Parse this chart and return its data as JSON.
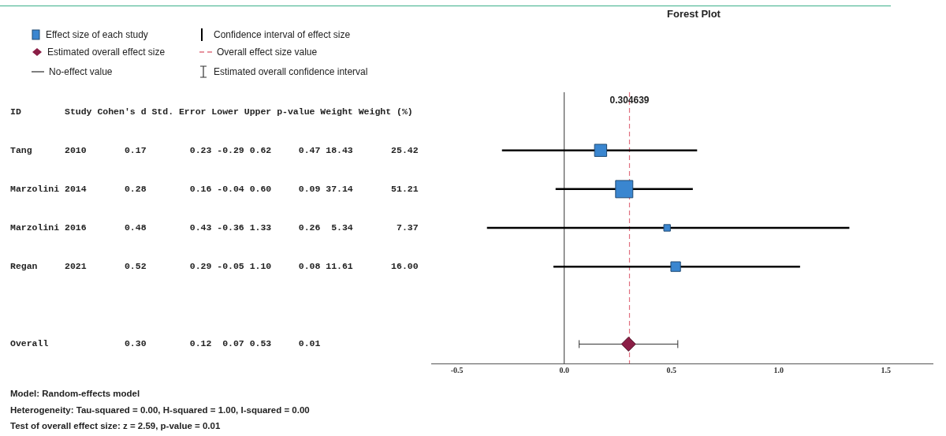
{
  "chart_data": {
    "type": "scatter",
    "title": "Forest Plot",
    "orientation": "horizontal",
    "categories": [
      null,
      null,
      null,
      null,
      null,
      null,
      null
    ],
    "series": [
      {
        "name": "Effect size of each study",
        "type": "bubble",
        "marker": "square",
        "color": "#3a86d0",
        "values": [
          null,
          0.17,
          0.28,
          0.48,
          0.52,
          null,
          null
        ],
        "sizes": [
          null,
          0.496,
          1,
          0.144,
          0.312,
          null,
          null
        ],
        "errors": [
          null,
          [
            -0.29,
            0.62
          ],
          [
            -0.04,
            0.6
          ],
          [
            -0.36,
            1.33
          ],
          [
            -0.05,
            1.1
          ],
          null,
          null
        ]
      },
      {
        "name": "Estimated overall effect size",
        "type": "scatter",
        "marker": "diamond",
        "color": "#8b1e46",
        "values": [
          null,
          null,
          null,
          null,
          null,
          null,
          0.3
        ],
        "errors": [
          null,
          null,
          null,
          null,
          null,
          null,
          [
            0.07,
            0.53
          ]
        ]
      }
    ],
    "xlim": [
      -0.62,
      1.72
    ],
    "xticks": [
      -0.5,
      {
        "value": 0,
        "label": "0.0"
      },
      0.5,
      {
        "value": 1,
        "label": "1.0"
      },
      1.5
    ],
    "tick_labels": "x",
    "grid": false,
    "legend": "top left",
    "ref_lines": [
      {
        "axis": "x",
        "value": 0,
        "label": "No-effect value",
        "color": "#555555",
        "line_style": "solid"
      },
      {
        "axis": "x",
        "value": 0.304639,
        "label": "Overall effect size value",
        "color": "#e0707f",
        "line_style": "dashed"
      }
    ],
    "annotations": [
      {
        "text": "0.304639",
        "x": 0.304639
      },
      "Confidence interval of effect size",
      "Estimated overall confidence interval",
      "ID        Study Cohen's d Std. Error Lower Upper p-value Weight Weight (%)",
      "Tang      2010       0.17        0.23 -0.29 0.62     0.47 18.43       25.42",
      "Marzolini 2014       0.28        0.16 -0.04 0.60     0.09 37.14       51.21",
      "Marzolini 2016       0.48        0.43 -0.36 1.33     0.26  5.34        7.37",
      "Regan     2021       0.52        0.29 -0.05 1.10     0.08 11.61       16.00",
      "Overall              0.30        0.12  0.07 0.53     0.01",
      "Model: Random-effects model",
      "Heterogeneity: Tau-squared = 0.00, H-squared = 1.00, I-squared = 0.00",
      "Test of overall effect size: z = 2.59, p-value = 0.01"
    ]
  }
}
